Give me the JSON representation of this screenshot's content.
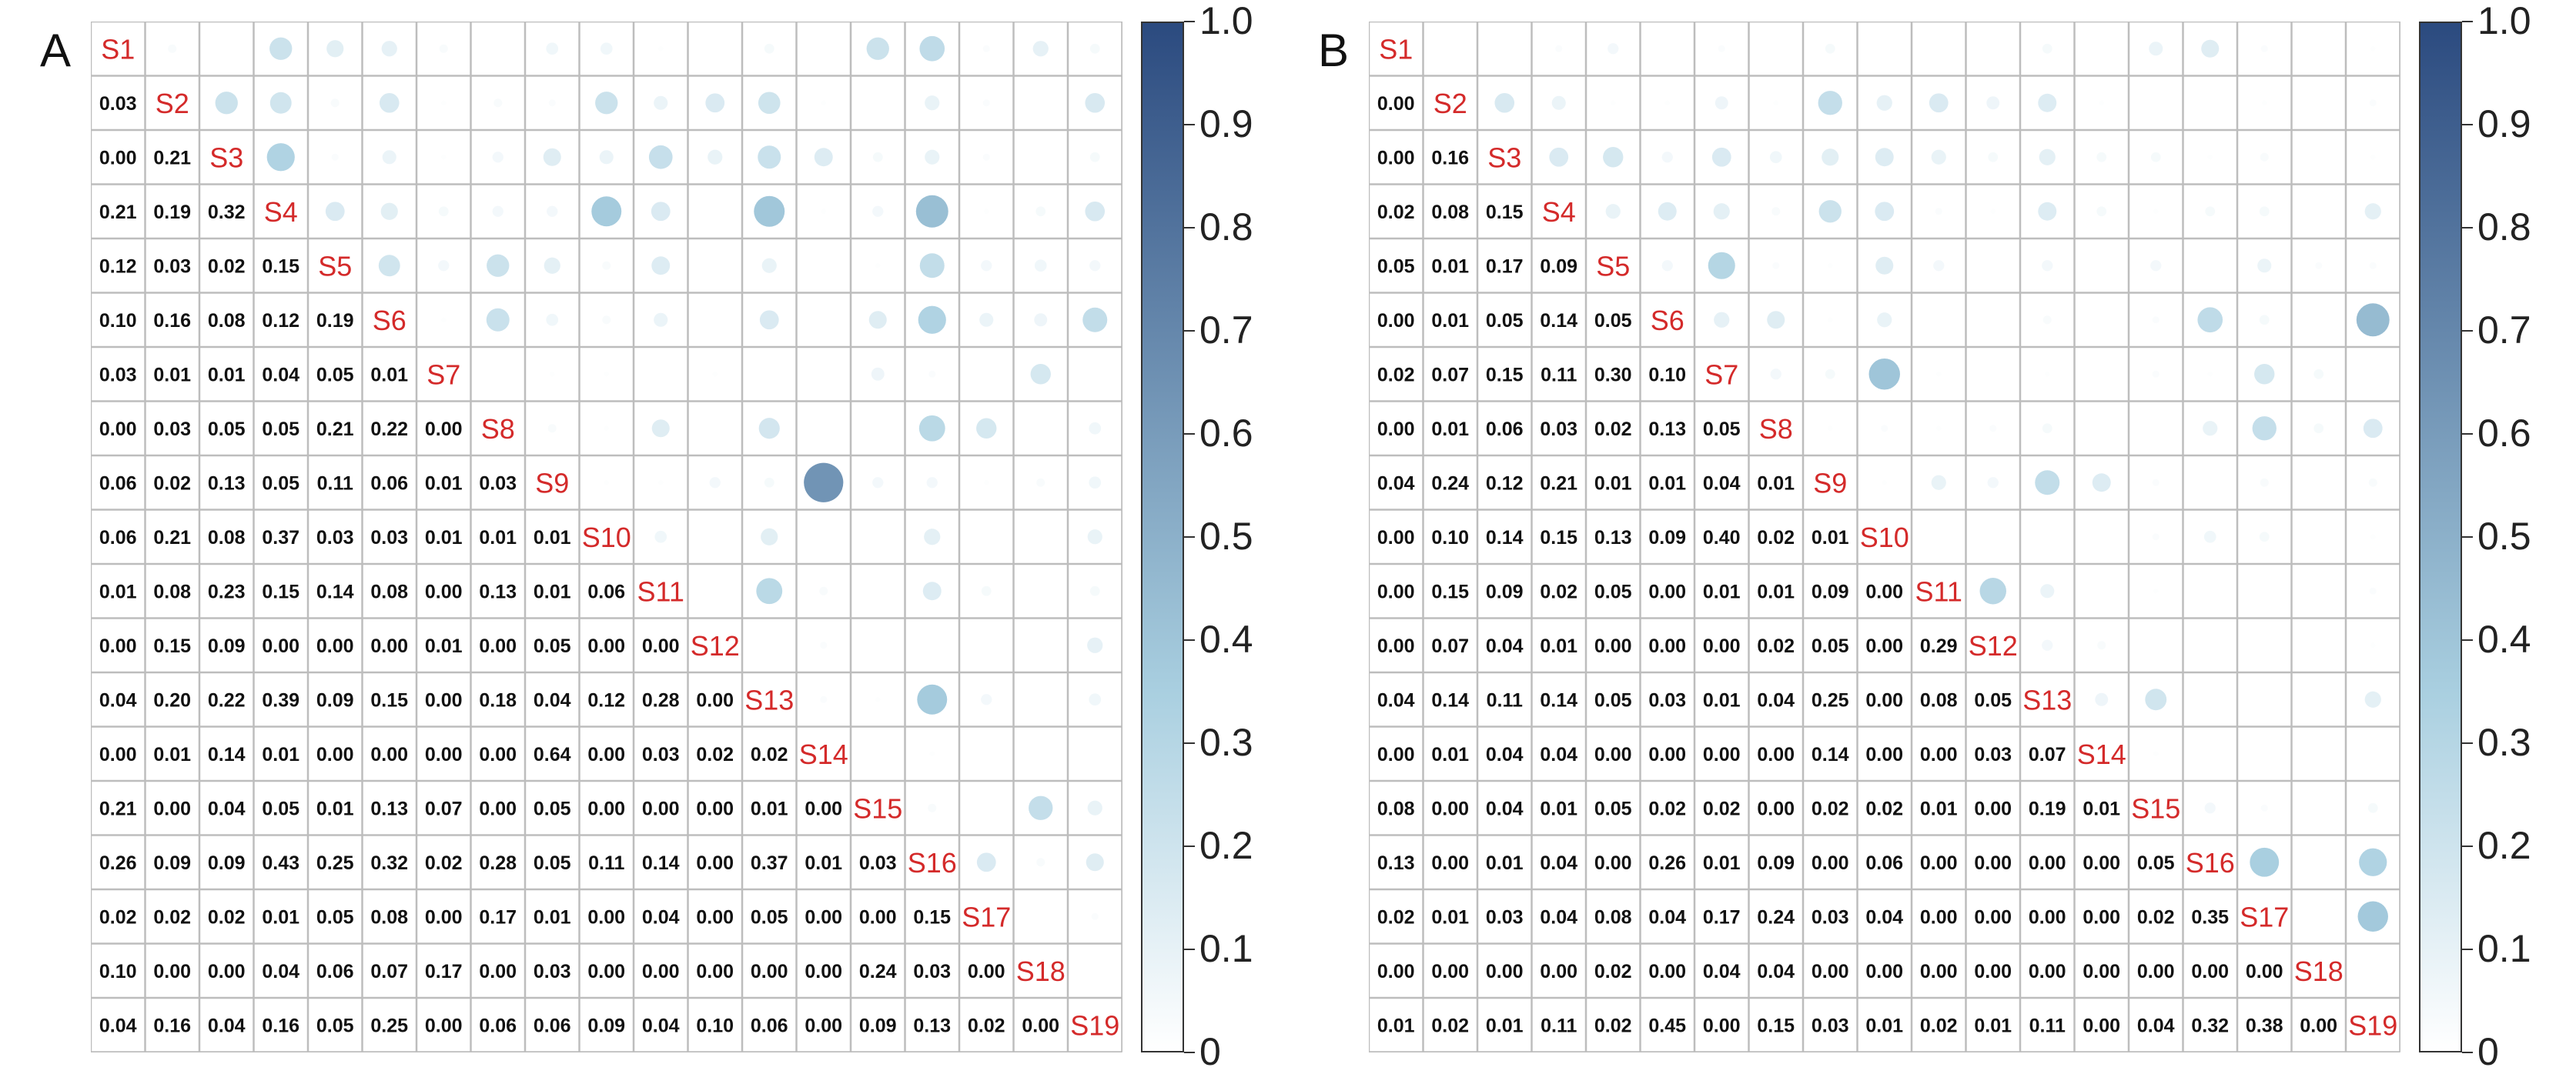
{
  "chart_data": [
    {
      "panel": "A",
      "type": "correlogram",
      "labels": [
        "S1",
        "S2",
        "S3",
        "S4",
        "S5",
        "S6",
        "S7",
        "S8",
        "S9",
        "S10",
        "S11",
        "S12",
        "S13",
        "S14",
        "S15",
        "S16",
        "S17",
        "S18",
        "S19"
      ],
      "lower_values": [
        [],
        [
          0.03
        ],
        [
          0.0,
          0.21
        ],
        [
          0.21,
          0.19,
          0.32
        ],
        [
          0.12,
          0.03,
          0.02,
          0.15
        ],
        [
          0.1,
          0.16,
          0.08,
          0.12,
          0.19
        ],
        [
          0.03,
          0.01,
          0.01,
          0.04,
          0.05,
          0.01
        ],
        [
          0.0,
          0.03,
          0.05,
          0.05,
          0.21,
          0.22,
          0.0
        ],
        [
          0.06,
          0.02,
          0.13,
          0.05,
          0.11,
          0.06,
          0.01,
          0.03
        ],
        [
          0.06,
          0.21,
          0.08,
          0.37,
          0.03,
          0.03,
          0.01,
          0.01,
          0.01
        ],
        [
          0.01,
          0.08,
          0.23,
          0.15,
          0.14,
          0.08,
          0.0,
          0.13,
          0.01,
          0.06
        ],
        [
          0.0,
          0.15,
          0.09,
          0.0,
          0.0,
          0.0,
          0.01,
          0.0,
          0.05,
          0.0,
          0.0
        ],
        [
          0.04,
          0.2,
          0.22,
          0.39,
          0.09,
          0.15,
          0.0,
          0.18,
          0.04,
          0.12,
          0.28,
          0.0
        ],
        [
          0.0,
          0.01,
          0.14,
          0.01,
          0.0,
          0.0,
          0.0,
          0.0,
          0.64,
          0.0,
          0.03,
          0.02,
          0.02
        ],
        [
          0.21,
          0.0,
          0.04,
          0.05,
          0.01,
          0.13,
          0.07,
          0.0,
          0.05,
          0.0,
          0.0,
          0.0,
          0.01,
          0.0
        ],
        [
          0.26,
          0.09,
          0.09,
          0.43,
          0.25,
          0.32,
          0.02,
          0.28,
          0.05,
          0.11,
          0.14,
          0.0,
          0.37,
          0.01,
          0.03
        ],
        [
          0.02,
          0.02,
          0.02,
          0.01,
          0.05,
          0.08,
          0.0,
          0.17,
          0.01,
          0.0,
          0.04,
          0.0,
          0.05,
          0.0,
          0.0,
          0.15
        ],
        [
          0.1,
          0.0,
          0.0,
          0.04,
          0.06,
          0.07,
          0.17,
          0.0,
          0.03,
          0.0,
          0.0,
          0.0,
          0.0,
          0.0,
          0.24,
          0.03,
          0.0
        ],
        [
          0.04,
          0.16,
          0.04,
          0.16,
          0.05,
          0.25,
          0.0,
          0.06,
          0.06,
          0.09,
          0.04,
          0.1,
          0.06,
          0.0,
          0.09,
          0.13,
          0.02,
          0.0
        ]
      ],
      "colorbar": {
        "ticks": [
          "0",
          "0.1",
          "0.2",
          "0.3",
          "0.4",
          "0.5",
          "0.6",
          "0.7",
          "0.8",
          "0.9",
          "1.0"
        ],
        "colors": [
          "#ffffff",
          "#a9cfe0",
          "#2b4a7f"
        ]
      }
    },
    {
      "panel": "B",
      "type": "correlogram",
      "labels": [
        "S1",
        "S2",
        "S3",
        "S4",
        "S5",
        "S6",
        "S7",
        "S8",
        "S9",
        "S10",
        "S11",
        "S12",
        "S13",
        "S14",
        "S15",
        "S16",
        "S17",
        "S18",
        "S19"
      ],
      "lower_values": [
        [],
        [
          0.0
        ],
        [
          0.0,
          0.16
        ],
        [
          0.02,
          0.08,
          0.15
        ],
        [
          0.05,
          0.01,
          0.17,
          0.09
        ],
        [
          0.0,
          0.01,
          0.05,
          0.14,
          0.05
        ],
        [
          0.02,
          0.07,
          0.15,
          0.11,
          0.3,
          0.1
        ],
        [
          0.0,
          0.01,
          0.06,
          0.03,
          0.02,
          0.13,
          0.05
        ],
        [
          0.04,
          0.24,
          0.12,
          0.21,
          0.01,
          0.01,
          0.04,
          0.01
        ],
        [
          0.0,
          0.1,
          0.14,
          0.15,
          0.13,
          0.09,
          0.4,
          0.02,
          0.01
        ],
        [
          0.0,
          0.15,
          0.09,
          0.02,
          0.05,
          0.0,
          0.01,
          0.01,
          0.09,
          0.0
        ],
        [
          0.0,
          0.07,
          0.04,
          0.01,
          0.0,
          0.0,
          0.0,
          0.02,
          0.05,
          0.0,
          0.29
        ],
        [
          0.04,
          0.14,
          0.11,
          0.14,
          0.05,
          0.03,
          0.01,
          0.04,
          0.25,
          0.0,
          0.08,
          0.05
        ],
        [
          0.0,
          0.01,
          0.04,
          0.04,
          0.0,
          0.0,
          0.0,
          0.0,
          0.14,
          0.0,
          0.0,
          0.03,
          0.07
        ],
        [
          0.08,
          0.0,
          0.04,
          0.01,
          0.05,
          0.02,
          0.02,
          0.0,
          0.02,
          0.02,
          0.01,
          0.0,
          0.19,
          0.01
        ],
        [
          0.13,
          0.0,
          0.01,
          0.04,
          0.0,
          0.26,
          0.01,
          0.09,
          0.0,
          0.06,
          0.0,
          0.0,
          0.0,
          0.0,
          0.05
        ],
        [
          0.02,
          0.01,
          0.03,
          0.04,
          0.08,
          0.04,
          0.17,
          0.24,
          0.03,
          0.04,
          0.0,
          0.0,
          0.0,
          0.0,
          0.02,
          0.35
        ],
        [
          0.0,
          0.0,
          0.0,
          0.0,
          0.02,
          0.0,
          0.04,
          0.04,
          0.0,
          0.0,
          0.0,
          0.0,
          0.0,
          0.0,
          0.0,
          0.0,
          0.0
        ],
        [
          0.01,
          0.02,
          0.01,
          0.11,
          0.02,
          0.45,
          0.0,
          0.15,
          0.03,
          0.01,
          0.02,
          0.01,
          0.11,
          0.0,
          0.04,
          0.32,
          0.38,
          0.0
        ]
      ],
      "colorbar": {
        "ticks": [
          "0",
          "0.1",
          "0.2",
          "0.3",
          "0.4",
          "0.5",
          "0.6",
          "0.7",
          "0.8",
          "0.9",
          "1.0"
        ],
        "colors": [
          "#ffffff",
          "#a9cfe0",
          "#2b4a7f"
        ]
      }
    }
  ]
}
